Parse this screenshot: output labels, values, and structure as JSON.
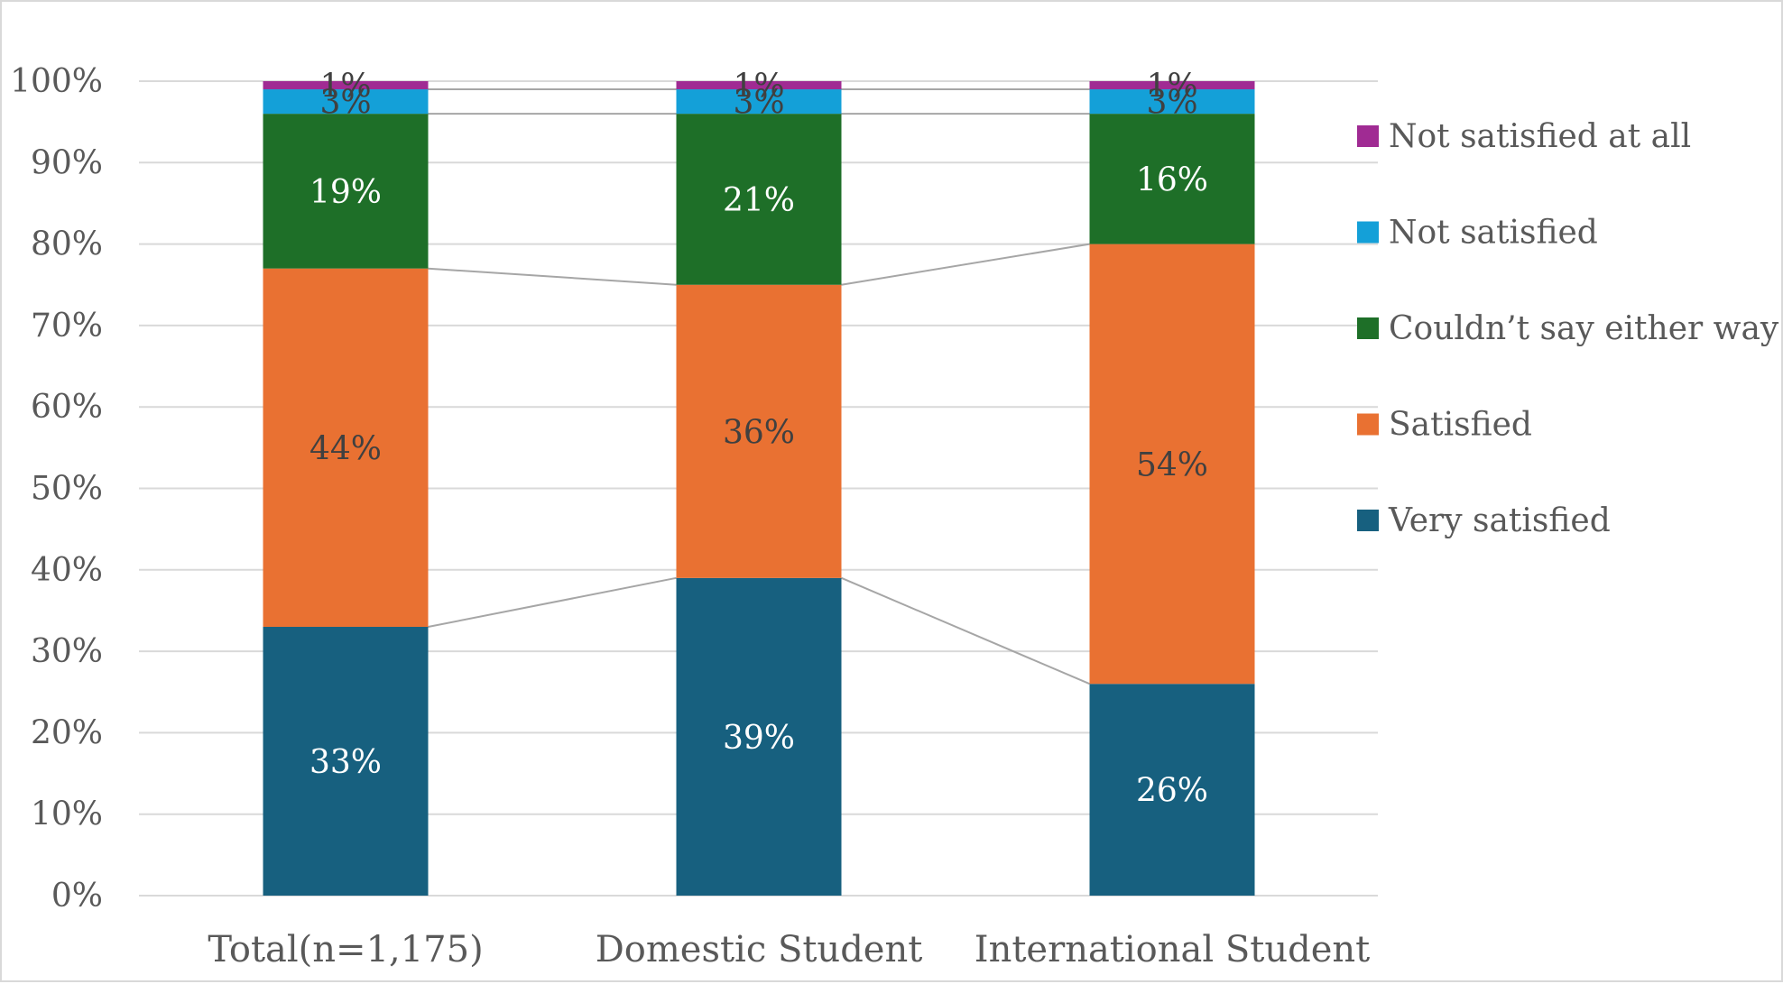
{
  "chart_data": {
    "type": "bar",
    "stacked": true,
    "percent": true,
    "title": "",
    "xlabel": "",
    "ylabel": "",
    "ylim": [
      0,
      100
    ],
    "yticks": [
      "0%",
      "10%",
      "20%",
      "30%",
      "40%",
      "50%",
      "60%",
      "70%",
      "80%",
      "90%",
      "100%"
    ],
    "grid": true,
    "series_lines": true,
    "legend": "right",
    "categories": [
      "Total(n=1,175)",
      "Domestic Student",
      "International Student"
    ],
    "series": [
      {
        "name": "Very satisfied",
        "color": "#17607f",
        "label_color": "#ffffff",
        "values": [
          33,
          39,
          26
        ],
        "labels": [
          "33%",
          "39%",
          "26%"
        ]
      },
      {
        "name": "Satisfied",
        "color": "#e97132",
        "label_color": "#404040",
        "values": [
          44,
          36,
          54
        ],
        "labels": [
          "44%",
          "36%",
          "54%"
        ]
      },
      {
        "name": "Couldn’t say either way",
        "color": "#1e6f28",
        "label_color": "#ffffff",
        "values": [
          19,
          21,
          16
        ],
        "labels": [
          "19%",
          "21%",
          "16%"
        ]
      },
      {
        "name": "Not satisfied",
        "color": "#14a0d8",
        "label_color": "#404040",
        "values": [
          3,
          3,
          3
        ],
        "labels": [
          "3%",
          "3%",
          "3%"
        ]
      },
      {
        "name": "Not satisfied at all",
        "color": "#a02b93",
        "label_color": "#404040",
        "values": [
          1,
          1,
          1
        ],
        "labels": [
          "1%",
          "1%",
          "1%"
        ]
      }
    ]
  }
}
